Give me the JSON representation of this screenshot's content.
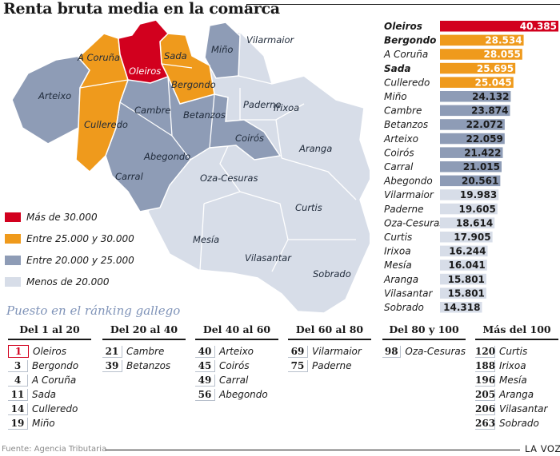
{
  "title": "Renta bruta media en la comarca",
  "colors": {
    "red": "#d2001e",
    "orange": "#ef9a1c",
    "blue": "#8e9cb6",
    "light": "#d7dde8"
  },
  "legend": [
    {
      "label": "Más de 30.000",
      "color": "#d2001e"
    },
    {
      "label": "Entre 25.000 y 30.000",
      "color": "#ef9a1c"
    },
    {
      "label": "Entre 20.000 y 25.000",
      "color": "#8e9cb6"
    },
    {
      "label": "Menos de 20.000",
      "color": "#d7dde8"
    }
  ],
  "chart_data": {
    "type": "bar",
    "orientation": "horizontal",
    "categories": [
      "Oleiros",
      "Bergondo",
      "A Coruña",
      "Sada",
      "Culleredo",
      "Miño",
      "Cambre",
      "Betanzos",
      "Arteixo",
      "Coirós",
      "Carral",
      "Abegondo",
      "Vilarmaior",
      "Paderne",
      "Oza-Cesuras",
      "Curtis",
      "Irixoa",
      "Mesía",
      "Aranga",
      "Vilasantar",
      "Sobrado"
    ],
    "values": [
      40385,
      28534,
      28055,
      25695,
      25045,
      24132,
      23874,
      22072,
      22059,
      21422,
      21015,
      20561,
      19983,
      19605,
      18614,
      17905,
      16244,
      16041,
      15801,
      15801,
      14318
    ],
    "value_labels": [
      "40.385",
      "28.534",
      "28.055",
      "25.695",
      "25.045",
      "24.132",
      "23.874",
      "22.072",
      "22.059",
      "21.422",
      "21.015",
      "20.561",
      "19.983",
      "19.605",
      "18.614",
      "17.905",
      "16.244",
      "16.041",
      "15.801",
      "15.801",
      "14.318"
    ],
    "bold": [
      true,
      true,
      false,
      true,
      false,
      false,
      false,
      false,
      false,
      false,
      false,
      false,
      false,
      false,
      false,
      false,
      false,
      false,
      false,
      false,
      false
    ],
    "xlim": [
      0,
      40385
    ],
    "title": "Renta bruta media en la comarca"
  },
  "map_labels": [
    "Oleiros",
    "A Coruña",
    "Sada",
    "Bergondo",
    "Miño",
    "Vilarmaior",
    "Arteixo",
    "Cambre",
    "Culleredo",
    "Betanzos",
    "Paderne",
    "Irixoa",
    "Coirós",
    "Abegondo",
    "Aranga",
    "Carral",
    "Oza-Cesuras",
    "Curtis",
    "Mesía",
    "Vilasantar",
    "Sobrado"
  ],
  "ranking": {
    "title": "Puesto en el ránking gallego",
    "columns": [
      {
        "header": "Del 1 al 20",
        "rows": [
          {
            "rank": "1",
            "name": "Oleiros"
          },
          {
            "rank": "3",
            "name": "Bergondo"
          },
          {
            "rank": "4",
            "name": "A Coruña"
          },
          {
            "rank": "11",
            "name": "Sada"
          },
          {
            "rank": "14",
            "name": "Culleredo"
          },
          {
            "rank": "19",
            "name": "Miño"
          }
        ]
      },
      {
        "header": "Del 20 al 40",
        "rows": [
          {
            "rank": "21",
            "name": "Cambre"
          },
          {
            "rank": "39",
            "name": "Betanzos"
          }
        ]
      },
      {
        "header": "Del 40 al 60",
        "rows": [
          {
            "rank": "40",
            "name": "Arteixo"
          },
          {
            "rank": "45",
            "name": "Coirós"
          },
          {
            "rank": "49",
            "name": "Carral"
          },
          {
            "rank": "56",
            "name": "Abegondo"
          }
        ]
      },
      {
        "header": "Del 60 al 80",
        "rows": [
          {
            "rank": "69",
            "name": "Vilarmaior"
          },
          {
            "rank": "75",
            "name": "Paderne"
          }
        ]
      },
      {
        "header": "Del 80 y 100",
        "rows": [
          {
            "rank": "98",
            "name": "Oza-Cesuras"
          }
        ]
      },
      {
        "header": "Más del 100",
        "rows": [
          {
            "rank": "120",
            "name": "Curtis"
          },
          {
            "rank": "188",
            "name": "Irixoa"
          },
          {
            "rank": "196",
            "name": "Mesía"
          },
          {
            "rank": "205",
            "name": "Aranga"
          },
          {
            "rank": "206",
            "name": "Vilasantar"
          },
          {
            "rank": "263",
            "name": "Sobrado"
          }
        ]
      }
    ]
  },
  "source": "Fuente: Agencia Tributaria",
  "brand": "LA VOZ"
}
